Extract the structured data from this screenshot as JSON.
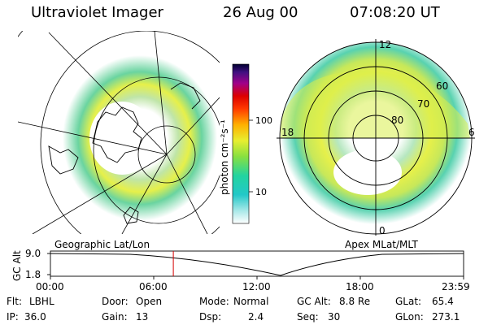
{
  "header": {
    "instrument": "Ultraviolet Imager",
    "date": "26 Aug 00",
    "time": "07:08:20 UT"
  },
  "colorbar": {
    "unit_label": "photon cm⁻²s⁻¹",
    "ticks": [
      "100",
      "10"
    ]
  },
  "polar_plot": {
    "lat_labels": [
      "60",
      "70",
      "80"
    ],
    "mlt_labels": {
      "top": "12",
      "left": "18",
      "right": "6",
      "bottom": "0"
    },
    "caption": "Apex MLat/MLT"
  },
  "geo_plot": {
    "caption": "Geographic Lat/Lon"
  },
  "altitude_plot": {
    "ylabel": "GC Alt",
    "y_ticks": [
      "9.0",
      "1.8"
    ],
    "x_ticks": [
      "00:00",
      "06:00",
      "12:00",
      "18:00",
      "23:59"
    ],
    "current_time_hours": 7.14
  },
  "status": {
    "filter_label": "Flt:",
    "filter_value": "LBHL",
    "door_label": "Door:",
    "door_value": "Open",
    "mode_label": "Mode:",
    "mode_value": "Normal",
    "gcalt_label": "GC Alt:",
    "gcalt_value": "8.8 Re",
    "glat_label": "GLat:",
    "glat_value": "65.4",
    "ip_label": "IP:",
    "ip_value": "36.0",
    "gain_label": "Gain:",
    "gain_value": "13",
    "dsp_label": "Dsp:",
    "dsp_value": "2.4",
    "seq_label": "Seq:",
    "seq_value": "30",
    "glon_label": "GLon:",
    "glon_value": "273.1"
  }
}
